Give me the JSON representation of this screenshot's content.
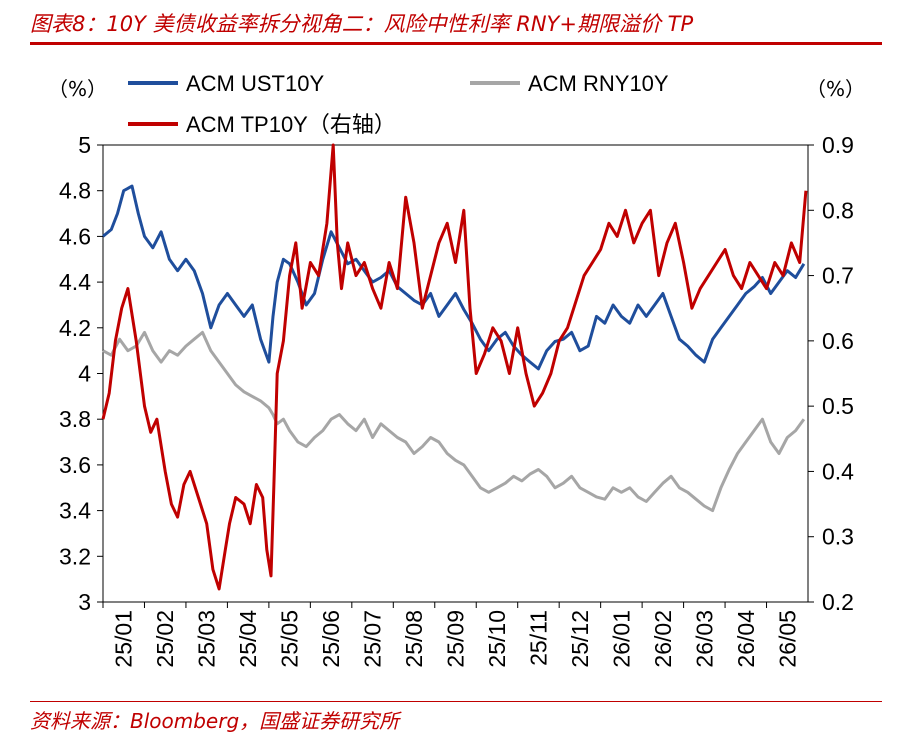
{
  "header": {
    "title": "图表8：10Y 美债收益率拆分视角二：风险中性利率 RNY+期限溢价 TP"
  },
  "footer": {
    "source": "资料来源：Bloomberg，国盛证券研究所"
  },
  "chart_data": {
    "type": "line",
    "left_unit": "（%）",
    "right_unit": "（%）",
    "x_categories": [
      "25/01",
      "25/02",
      "25/03",
      "25/04",
      "25/05",
      "25/06",
      "25/07",
      "25/08",
      "25/09",
      "25/10",
      "25/11",
      "25/12",
      "26/01",
      "26/02",
      "26/03",
      "26/04",
      "26/05"
    ],
    "y_left": {
      "min": 3.0,
      "max": 5.0,
      "ticks": [
        "3",
        "3.2",
        "3.4",
        "3.6",
        "3.8",
        "4",
        "4.2",
        "4.4",
        "4.6",
        "4.8",
        "5"
      ]
    },
    "y_right": {
      "min": 0.2,
      "max": 0.9,
      "ticks": [
        "0.2",
        "0.3",
        "0.4",
        "0.5",
        "0.6",
        "0.7",
        "0.8",
        "0.9"
      ]
    },
    "legend": [
      {
        "label": "ACM UST10Y",
        "color": "#1f4e9c"
      },
      {
        "label": "ACM RNY10Y",
        "color": "#a6a6a6"
      },
      {
        "label": "ACM TP10Y（右轴）",
        "color": "#c00000"
      }
    ],
    "series": [
      {
        "name": "ACM UST10Y",
        "axis": "left",
        "color": "#1f4e9c",
        "x": [
          0,
          0.2,
          0.35,
          0.5,
          0.7,
          0.85,
          1.0,
          1.2,
          1.4,
          1.6,
          1.8,
          2.0,
          2.2,
          2.4,
          2.6,
          2.8,
          3.0,
          3.2,
          3.4,
          3.6,
          3.8,
          4.0,
          4.1,
          4.2,
          4.35,
          4.5,
          4.7,
          4.9,
          5.1,
          5.3,
          5.5,
          5.7,
          5.9,
          6.1,
          6.3,
          6.5,
          6.7,
          6.9,
          7.1,
          7.3,
          7.5,
          7.7,
          7.9,
          8.1,
          8.3,
          8.5,
          8.7,
          8.9,
          9.1,
          9.3,
          9.5,
          9.7,
          9.9,
          10.1,
          10.3,
          10.5,
          10.7,
          10.9,
          11.1,
          11.3,
          11.5,
          11.7,
          11.9,
          12.1,
          12.3,
          12.5,
          12.7,
          12.9,
          13.1,
          13.3,
          13.5,
          13.7,
          13.9,
          14.1,
          14.3,
          14.5,
          14.7,
          14.9,
          15.1,
          15.3,
          15.5,
          15.7,
          15.9,
          16.1,
          16.3,
          16.5,
          16.7,
          16.9
        ],
        "values": [
          4.6,
          4.63,
          4.7,
          4.8,
          4.82,
          4.7,
          4.6,
          4.55,
          4.62,
          4.5,
          4.45,
          4.5,
          4.45,
          4.35,
          4.2,
          4.3,
          4.35,
          4.3,
          4.25,
          4.3,
          4.15,
          4.05,
          4.25,
          4.4,
          4.5,
          4.48,
          4.4,
          4.3,
          4.35,
          4.5,
          4.62,
          4.55,
          4.48,
          4.5,
          4.45,
          4.4,
          4.42,
          4.45,
          4.38,
          4.35,
          4.32,
          4.3,
          4.35,
          4.25,
          4.3,
          4.35,
          4.28,
          4.22,
          4.15,
          4.1,
          4.15,
          4.18,
          4.12,
          4.08,
          4.05,
          4.02,
          4.1,
          4.14,
          4.15,
          4.18,
          4.1,
          4.12,
          4.25,
          4.22,
          4.3,
          4.25,
          4.22,
          4.3,
          4.25,
          4.3,
          4.35,
          4.25,
          4.15,
          4.12,
          4.08,
          4.05,
          4.15,
          4.2,
          4.25,
          4.3,
          4.35,
          4.38,
          4.42,
          4.35,
          4.4,
          4.45,
          4.42,
          4.48
        ]
      },
      {
        "name": "ACM RNY10Y",
        "axis": "left",
        "color": "#a6a6a6",
        "x": [
          0,
          0.2,
          0.4,
          0.6,
          0.8,
          1.0,
          1.2,
          1.4,
          1.6,
          1.8,
          2.0,
          2.2,
          2.4,
          2.6,
          2.8,
          3.0,
          3.2,
          3.4,
          3.6,
          3.8,
          4.0,
          4.1,
          4.2,
          4.35,
          4.5,
          4.7,
          4.9,
          5.1,
          5.3,
          5.5,
          5.7,
          5.9,
          6.1,
          6.3,
          6.5,
          6.7,
          6.9,
          7.1,
          7.3,
          7.5,
          7.7,
          7.9,
          8.1,
          8.3,
          8.5,
          8.7,
          8.9,
          9.1,
          9.3,
          9.5,
          9.7,
          9.9,
          10.1,
          10.3,
          10.5,
          10.7,
          10.9,
          11.1,
          11.3,
          11.5,
          11.7,
          11.9,
          12.1,
          12.3,
          12.5,
          12.7,
          12.9,
          13.1,
          13.3,
          13.5,
          13.7,
          13.9,
          14.1,
          14.3,
          14.5,
          14.7,
          14.9,
          15.1,
          15.3,
          15.5,
          15.7,
          15.9,
          16.1,
          16.3,
          16.5,
          16.7,
          16.9
        ],
        "values": [
          4.1,
          4.08,
          4.15,
          4.1,
          4.12,
          4.18,
          4.1,
          4.05,
          4.1,
          4.08,
          4.12,
          4.15,
          4.18,
          4.1,
          4.05,
          4.0,
          3.95,
          3.92,
          3.9,
          3.88,
          3.85,
          3.82,
          3.78,
          3.8,
          3.75,
          3.7,
          3.68,
          3.72,
          3.75,
          3.8,
          3.82,
          3.78,
          3.75,
          3.8,
          3.72,
          3.78,
          3.75,
          3.72,
          3.7,
          3.65,
          3.68,
          3.72,
          3.7,
          3.65,
          3.62,
          3.6,
          3.55,
          3.5,
          3.48,
          3.5,
          3.52,
          3.55,
          3.53,
          3.56,
          3.58,
          3.55,
          3.5,
          3.52,
          3.55,
          3.5,
          3.48,
          3.46,
          3.45,
          3.5,
          3.48,
          3.5,
          3.46,
          3.44,
          3.48,
          3.52,
          3.55,
          3.5,
          3.48,
          3.45,
          3.42,
          3.4,
          3.5,
          3.58,
          3.65,
          3.7,
          3.75,
          3.8,
          3.7,
          3.65,
          3.72,
          3.75,
          3.8
        ]
      },
      {
        "name": "ACM TP10Y（右轴）",
        "axis": "right",
        "color": "#c00000",
        "x": [
          0,
          0.15,
          0.3,
          0.45,
          0.6,
          0.8,
          1.0,
          1.15,
          1.3,
          1.5,
          1.65,
          1.8,
          1.95,
          2.1,
          2.3,
          2.5,
          2.65,
          2.8,
          2.95,
          3.05,
          3.2,
          3.4,
          3.55,
          3.7,
          3.85,
          3.95,
          4.05,
          4.12,
          4.2,
          4.35,
          4.5,
          4.65,
          4.8,
          5.0,
          5.2,
          5.4,
          5.55,
          5.65,
          5.75,
          5.9,
          6.1,
          6.3,
          6.5,
          6.7,
          6.9,
          7.1,
          7.3,
          7.5,
          7.7,
          7.9,
          8.1,
          8.3,
          8.5,
          8.7,
          8.85,
          9.0,
          9.2,
          9.4,
          9.6,
          9.8,
          10.0,
          10.2,
          10.4,
          10.6,
          10.8,
          11.0,
          11.2,
          11.4,
          11.6,
          11.8,
          12.0,
          12.2,
          12.4,
          12.6,
          12.8,
          13.0,
          13.2,
          13.4,
          13.6,
          13.8,
          14.0,
          14.2,
          14.4,
          14.6,
          14.8,
          15.0,
          15.2,
          15.4,
          15.6,
          15.8,
          16.0,
          16.2,
          16.4,
          16.6,
          16.8,
          16.95
        ],
        "values": [
          0.48,
          0.52,
          0.6,
          0.65,
          0.68,
          0.6,
          0.5,
          0.46,
          0.48,
          0.4,
          0.35,
          0.33,
          0.38,
          0.4,
          0.36,
          0.32,
          0.25,
          0.22,
          0.28,
          0.32,
          0.36,
          0.35,
          0.32,
          0.38,
          0.36,
          0.28,
          0.24,
          0.38,
          0.55,
          0.6,
          0.7,
          0.75,
          0.65,
          0.72,
          0.7,
          0.78,
          0.9,
          0.75,
          0.68,
          0.75,
          0.7,
          0.72,
          0.68,
          0.65,
          0.72,
          0.68,
          0.82,
          0.75,
          0.65,
          0.7,
          0.75,
          0.78,
          0.72,
          0.8,
          0.65,
          0.55,
          0.58,
          0.62,
          0.6,
          0.55,
          0.62,
          0.55,
          0.5,
          0.52,
          0.55,
          0.6,
          0.62,
          0.66,
          0.7,
          0.72,
          0.74,
          0.78,
          0.76,
          0.8,
          0.75,
          0.78,
          0.8,
          0.7,
          0.75,
          0.78,
          0.72,
          0.65,
          0.68,
          0.7,
          0.72,
          0.74,
          0.7,
          0.68,
          0.72,
          0.7,
          0.68,
          0.72,
          0.7,
          0.75,
          0.72,
          0.83
        ]
      }
    ]
  }
}
